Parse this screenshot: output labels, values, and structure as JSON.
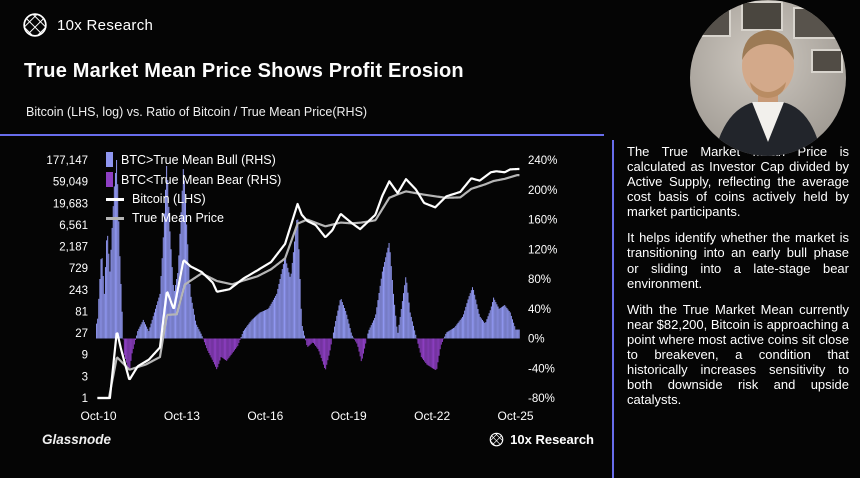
{
  "header": {
    "brand": "10x Research",
    "title": "True Market Mean Price Shows Profit Erosion",
    "subtitle": "Bitcoin (LHS, log) vs. Ratio of Bitcoin / True Mean Price(RHS)"
  },
  "chart_footer": {
    "source": "Glassnode",
    "brand": "10x Research"
  },
  "side_panel": {
    "paragraphs": [
      "The True Market Mean Price is calculated as Investor Cap divided by Active Supply, reflecting the average cost basis of coins actively held by market participants.",
      "It helps identify whether the market is transitioning into an early bull phase or sliding into a late-stage bear environment.",
      "With the True Market Mean currently near $82,200, Bitcoin is approaching a point where most active coins sit close to breakeven, a condition that historically increases sensitivity to both downside risk and upside catalysts."
    ]
  },
  "colors": {
    "background": "#050505",
    "accent": "#686deb",
    "bull_bar": "#9097f1",
    "bear_bar": "#8e3fc4",
    "bitcoin_line": "#ffffff",
    "true_mean_line": "#b5b5b5",
    "text": "#ffffff"
  },
  "chart_data": {
    "type": "combo",
    "title": "True Market Mean Price Shows Profit Erosion",
    "subtitle": "Bitcoin (LHS, log) vs. Ratio of Bitcoin / True Mean Price(RHS)",
    "grid": false,
    "legend_position": "top-left",
    "x_axis": {
      "range": [
        2010.7,
        2025.95
      ],
      "ticks": [
        "Oct-10",
        "Oct-13",
        "Oct-16",
        "Oct-19",
        "Oct-22",
        "Oct-25"
      ],
      "tick_years": [
        2010.79,
        2013.79,
        2016.79,
        2019.79,
        2022.79,
        2025.79
      ]
    },
    "left_axis": {
      "label": "Bitcoin (LHS, log)",
      "scale": "log-base-3",
      "range": [
        1,
        177147
      ],
      "ticks": [
        "177,147",
        "59,049",
        "19,683",
        "6,561",
        "2,187",
        "729",
        "243",
        "81",
        "27",
        "9",
        "3",
        "1"
      ],
      "tick_values": [
        177147,
        59049,
        19683,
        6561,
        2187,
        729,
        243,
        81,
        27,
        9,
        3,
        1
      ]
    },
    "right_axis": {
      "label": "Ratio of Bitcoin / True Mean Price (RHS)",
      "range": [
        -80,
        240
      ],
      "ticks": [
        "240%",
        "200%",
        "160%",
        "120%",
        "80%",
        "40%",
        "0%",
        "-40%",
        "-80%"
      ],
      "tick_values": [
        240,
        200,
        160,
        120,
        80,
        40,
        0,
        -40,
        -80
      ]
    },
    "legend": [
      {
        "label": "BTC>True Mean Bull (RHS)",
        "swatch": "bar",
        "color": "#9097f1"
      },
      {
        "label": "BTC<True Mean Bear (RHS)",
        "swatch": "bar",
        "color": "#8e3fc4"
      },
      {
        "label": "Bitcoin (LHS)",
        "swatch": "line",
        "color": "#ffffff"
      },
      {
        "label": "True Mean Price",
        "swatch": "line",
        "color": "#b5b5b5"
      }
    ],
    "series": [
      {
        "name": "Ratio BTC / True Mean Price",
        "type": "bar",
        "axis": "right",
        "unit": "%",
        "bull_color": "#9097f1",
        "bear_color": "#8e3fc4",
        "points": [
          [
            2010.75,
            20
          ],
          [
            2010.9,
            120
          ],
          [
            2011.0,
            60
          ],
          [
            2011.1,
            150
          ],
          [
            2011.2,
            90
          ],
          [
            2011.35,
            200
          ],
          [
            2011.45,
            245
          ],
          [
            2011.55,
            120
          ],
          [
            2011.7,
            -20
          ],
          [
            2011.9,
            -45
          ],
          [
            2012.0,
            -20
          ],
          [
            2012.2,
            10
          ],
          [
            2012.4,
            25
          ],
          [
            2012.6,
            10
          ],
          [
            2012.8,
            35
          ],
          [
            2013.0,
            60
          ],
          [
            2013.1,
            120
          ],
          [
            2013.25,
            240
          ],
          [
            2013.35,
            150
          ],
          [
            2013.5,
            60
          ],
          [
            2013.65,
            90
          ],
          [
            2013.85,
            235
          ],
          [
            2013.95,
            160
          ],
          [
            2014.1,
            60
          ],
          [
            2014.3,
            20
          ],
          [
            2014.5,
            5
          ],
          [
            2014.7,
            -15
          ],
          [
            2014.9,
            -30
          ],
          [
            2015.05,
            -42
          ],
          [
            2015.2,
            -25
          ],
          [
            2015.4,
            -30
          ],
          [
            2015.6,
            -20
          ],
          [
            2015.8,
            -10
          ],
          [
            2016.0,
            10
          ],
          [
            2016.3,
            25
          ],
          [
            2016.6,
            35
          ],
          [
            2016.9,
            40
          ],
          [
            2017.2,
            60
          ],
          [
            2017.5,
            110
          ],
          [
            2017.7,
            80
          ],
          [
            2017.95,
            170
          ],
          [
            2018.1,
            20
          ],
          [
            2018.3,
            -12
          ],
          [
            2018.5,
            -5
          ],
          [
            2018.7,
            -15
          ],
          [
            2018.95,
            -43
          ],
          [
            2019.1,
            -20
          ],
          [
            2019.3,
            20
          ],
          [
            2019.5,
            55
          ],
          [
            2019.7,
            35
          ],
          [
            2019.9,
            5
          ],
          [
            2020.1,
            -8
          ],
          [
            2020.25,
            -32
          ],
          [
            2020.5,
            10
          ],
          [
            2020.75,
            30
          ],
          [
            2021.0,
            90
          ],
          [
            2021.25,
            130
          ],
          [
            2021.4,
            60
          ],
          [
            2021.55,
            5
          ],
          [
            2021.7,
            45
          ],
          [
            2021.85,
            85
          ],
          [
            2022.0,
            35
          ],
          [
            2022.2,
            5
          ],
          [
            2022.4,
            -25
          ],
          [
            2022.6,
            -35
          ],
          [
            2022.8,
            -40
          ],
          [
            2022.95,
            -43
          ],
          [
            2023.1,
            -10
          ],
          [
            2023.3,
            8
          ],
          [
            2023.6,
            15
          ],
          [
            2023.9,
            30
          ],
          [
            2024.1,
            55
          ],
          [
            2024.25,
            70
          ],
          [
            2024.5,
            30
          ],
          [
            2024.7,
            20
          ],
          [
            2024.9,
            40
          ],
          [
            2025.0,
            55
          ],
          [
            2025.2,
            40
          ],
          [
            2025.4,
            45
          ],
          [
            2025.6,
            35
          ],
          [
            2025.8,
            12
          ]
        ]
      },
      {
        "name": "Bitcoin (LHS)",
        "type": "line",
        "axis": "left",
        "unit": "USD",
        "color": "#ffffff",
        "points": [
          [
            2010.75,
            0.15
          ],
          [
            2011.0,
            0.9
          ],
          [
            2011.2,
            1.0
          ],
          [
            2011.45,
            30
          ],
          [
            2011.6,
            12
          ],
          [
            2011.9,
            2.5
          ],
          [
            2012.2,
            5
          ],
          [
            2012.6,
            7
          ],
          [
            2013.0,
            13
          ],
          [
            2013.25,
            230
          ],
          [
            2013.5,
            90
          ],
          [
            2013.85,
            1100
          ],
          [
            2014.1,
            800
          ],
          [
            2014.5,
            600
          ],
          [
            2014.9,
            350
          ],
          [
            2015.05,
            220
          ],
          [
            2015.5,
            250
          ],
          [
            2016.0,
            430
          ],
          [
            2016.5,
            650
          ],
          [
            2017.0,
            1000
          ],
          [
            2017.5,
            2500
          ],
          [
            2017.95,
            19000
          ],
          [
            2018.1,
            11000
          ],
          [
            2018.3,
            8000
          ],
          [
            2018.6,
            6500
          ],
          [
            2018.95,
            3500
          ],
          [
            2019.2,
            5000
          ],
          [
            2019.5,
            11500
          ],
          [
            2019.9,
            7200
          ],
          [
            2020.2,
            5300
          ],
          [
            2020.75,
            11000
          ],
          [
            2021.0,
            29000
          ],
          [
            2021.25,
            60000
          ],
          [
            2021.55,
            33000
          ],
          [
            2021.85,
            67000
          ],
          [
            2022.2,
            40000
          ],
          [
            2022.5,
            20000
          ],
          [
            2022.9,
            16000
          ],
          [
            2023.3,
            28000
          ],
          [
            2023.8,
            35000
          ],
          [
            2024.2,
            70000
          ],
          [
            2024.5,
            62000
          ],
          [
            2024.9,
            95000
          ],
          [
            2025.1,
            100000
          ],
          [
            2025.4,
            95000
          ],
          [
            2025.6,
            110000
          ],
          [
            2025.85,
            112000
          ]
        ]
      },
      {
        "name": "True Mean Price",
        "type": "line",
        "axis": "left",
        "unit": "USD",
        "color": "#b5b5b5",
        "points": [
          [
            2010.75,
            0.12
          ],
          [
            2011.0,
            0.3
          ],
          [
            2011.45,
            8
          ],
          [
            2011.9,
            4.2
          ],
          [
            2012.5,
            5.5
          ],
          [
            2013.0,
            8
          ],
          [
            2013.25,
            68
          ],
          [
            2013.6,
            70
          ],
          [
            2013.9,
            320
          ],
          [
            2014.5,
            560
          ],
          [
            2015.05,
            380
          ],
          [
            2015.6,
            320
          ],
          [
            2016.0,
            390
          ],
          [
            2016.5,
            480
          ],
          [
            2017.0,
            690
          ],
          [
            2017.5,
            1200
          ],
          [
            2017.95,
            7000
          ],
          [
            2018.3,
            8600
          ],
          [
            2018.95,
            6100
          ],
          [
            2019.5,
            7400
          ],
          [
            2019.9,
            7100
          ],
          [
            2020.25,
            7400
          ],
          [
            2020.75,
            8300
          ],
          [
            2021.25,
            26000
          ],
          [
            2021.55,
            31000
          ],
          [
            2021.85,
            36000
          ],
          [
            2022.5,
            30500
          ],
          [
            2022.9,
            28000
          ],
          [
            2023.3,
            26000
          ],
          [
            2023.8,
            26500
          ],
          [
            2024.2,
            41000
          ],
          [
            2024.7,
            51500
          ],
          [
            2025.0,
            61000
          ],
          [
            2025.4,
            68000
          ],
          [
            2025.85,
            82200
          ]
        ]
      }
    ]
  }
}
